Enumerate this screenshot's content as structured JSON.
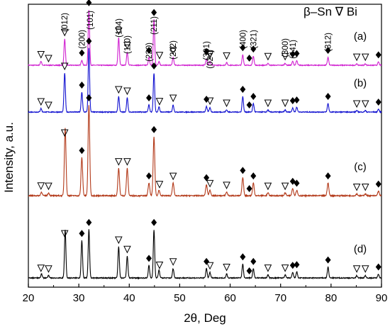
{
  "chart_data": {
    "type": "line",
    "xlabel": "2θ, Deg",
    "ylabel": "Intensity, a.u.",
    "xlim": [
      20,
      90
    ],
    "x_ticks": [
      20,
      30,
      40,
      50,
      60,
      70,
      80,
      90
    ],
    "legend": {
      "placement": "top-right",
      "items": [
        {
          "marker": "◆",
          "label": "β–Sn"
        },
        {
          "marker": "∇",
          "label": "Bi"
        }
      ],
      "text": "β–Sn ∇ Bi"
    },
    "series": [
      {
        "name": "(a)",
        "color": "#d020d0",
        "peaks": [
          {
            "x": 22.5,
            "h": 0.06
          },
          {
            "x": 27.2,
            "h": 0.4
          },
          {
            "x": 30.6,
            "h": 0.08
          },
          {
            "x": 32.0,
            "h": 0.85
          },
          {
            "x": 37.9,
            "h": 0.42
          },
          {
            "x": 39.6,
            "h": 0.2
          },
          {
            "x": 43.9,
            "h": 0.12
          },
          {
            "x": 44.9,
            "h": 0.7
          },
          {
            "x": 45.9,
            "h": 0.06
          },
          {
            "x": 48.7,
            "h": 0.12
          },
          {
            "x": 55.3,
            "h": 0.1
          },
          {
            "x": 56.0,
            "h": 0.06
          },
          {
            "x": 59.3,
            "h": 0.04
          },
          {
            "x": 62.5,
            "h": 0.16
          },
          {
            "x": 64.6,
            "h": 0.14
          },
          {
            "x": 67.5,
            "h": 0.03
          },
          {
            "x": 70.9,
            "h": 0.03
          },
          {
            "x": 72.4,
            "h": 0.06
          },
          {
            "x": 73.2,
            "h": 0.07
          },
          {
            "x": 79.4,
            "h": 0.12
          },
          {
            "x": 85.1,
            "h": 0.02
          },
          {
            "x": 86.8,
            "h": 0.02
          },
          {
            "x": 89.4,
            "h": 0.05
          }
        ]
      },
      {
        "name": "(b)",
        "color": "#1010d0",
        "peaks": [
          {
            "x": 22.5,
            "h": 0.05
          },
          {
            "x": 27.2,
            "h": 0.55
          },
          {
            "x": 30.6,
            "h": 0.28
          },
          {
            "x": 32.0,
            "h": 0.9
          },
          {
            "x": 37.9,
            "h": 0.22
          },
          {
            "x": 39.6,
            "h": 0.2
          },
          {
            "x": 43.9,
            "h": 0.1
          },
          {
            "x": 44.9,
            "h": 0.55
          },
          {
            "x": 45.9,
            "h": 0.07
          },
          {
            "x": 48.7,
            "h": 0.1
          },
          {
            "x": 55.3,
            "h": 0.08
          },
          {
            "x": 56.0,
            "h": 0.06
          },
          {
            "x": 59.3,
            "h": 0.03
          },
          {
            "x": 62.5,
            "h": 0.22
          },
          {
            "x": 64.6,
            "h": 0.12
          },
          {
            "x": 67.5,
            "h": 0.03
          },
          {
            "x": 70.9,
            "h": 0.03
          },
          {
            "x": 72.4,
            "h": 0.06
          },
          {
            "x": 73.2,
            "h": 0.07
          },
          {
            "x": 79.4,
            "h": 0.12
          },
          {
            "x": 85.1,
            "h": 0.02
          },
          {
            "x": 86.8,
            "h": 0.02
          },
          {
            "x": 89.4,
            "h": 0.04
          }
        ]
      },
      {
        "name": "(c)",
        "color": "#b33a1a",
        "peaks": [
          {
            "x": 22.6,
            "h": 0.04
          },
          {
            "x": 24.0,
            "h": 0.03
          },
          {
            "x": 27.3,
            "h": 0.75
          },
          {
            "x": 30.6,
            "h": 0.42
          },
          {
            "x": 32.0,
            "h": 1.0
          },
          {
            "x": 37.9,
            "h": 0.3
          },
          {
            "x": 39.6,
            "h": 0.3
          },
          {
            "x": 43.9,
            "h": 0.14
          },
          {
            "x": 44.9,
            "h": 0.65
          },
          {
            "x": 45.9,
            "h": 0.06
          },
          {
            "x": 48.7,
            "h": 0.14
          },
          {
            "x": 55.3,
            "h": 0.12
          },
          {
            "x": 56.0,
            "h": 0.06
          },
          {
            "x": 59.3,
            "h": 0.04
          },
          {
            "x": 62.5,
            "h": 0.2
          },
          {
            "x": 64.6,
            "h": 0.14
          },
          {
            "x": 67.5,
            "h": 0.03
          },
          {
            "x": 70.9,
            "h": 0.03
          },
          {
            "x": 72.4,
            "h": 0.08
          },
          {
            "x": 73.2,
            "h": 0.06
          },
          {
            "x": 79.4,
            "h": 0.14
          },
          {
            "x": 85.1,
            "h": 0.02
          },
          {
            "x": 86.8,
            "h": 0.02
          },
          {
            "x": 89.4,
            "h": 0.05
          }
        ]
      },
      {
        "name": "(d)",
        "color": "#000000",
        "peaks": [
          {
            "x": 22.6,
            "h": 0.05
          },
          {
            "x": 24.0,
            "h": 0.03
          },
          {
            "x": 27.3,
            "h": 0.62
          },
          {
            "x": 30.6,
            "h": 0.48
          },
          {
            "x": 32.0,
            "h": 0.62
          },
          {
            "x": 37.9,
            "h": 0.4
          },
          {
            "x": 39.6,
            "h": 0.28
          },
          {
            "x": 43.9,
            "h": 0.16
          },
          {
            "x": 44.9,
            "h": 0.62
          },
          {
            "x": 45.9,
            "h": 0.1
          },
          {
            "x": 48.7,
            "h": 0.12
          },
          {
            "x": 55.3,
            "h": 0.12
          },
          {
            "x": 56.0,
            "h": 0.07
          },
          {
            "x": 59.3,
            "h": 0.05
          },
          {
            "x": 62.5,
            "h": 0.18
          },
          {
            "x": 64.6,
            "h": 0.12
          },
          {
            "x": 67.5,
            "h": 0.04
          },
          {
            "x": 70.9,
            "h": 0.04
          },
          {
            "x": 72.4,
            "h": 0.07
          },
          {
            "x": 73.2,
            "h": 0.08
          },
          {
            "x": 79.4,
            "h": 0.14
          },
          {
            "x": 85.1,
            "h": 0.03
          },
          {
            "x": 86.8,
            "h": 0.03
          },
          {
            "x": 89.4,
            "h": 0.05
          }
        ]
      }
    ],
    "peak_markers": [
      {
        "x": 22.5,
        "phase": "Bi"
      },
      {
        "x": 24.0,
        "phase": "Bi"
      },
      {
        "x": 27.2,
        "phase": "Bi"
      },
      {
        "x": 30.6,
        "phase": "β-Sn"
      },
      {
        "x": 32.0,
        "phase": "β-Sn"
      },
      {
        "x": 37.9,
        "phase": "Bi"
      },
      {
        "x": 39.6,
        "phase": "Bi"
      },
      {
        "x": 43.9,
        "phase": "β-Sn"
      },
      {
        "x": 44.9,
        "phase": "β-Sn"
      },
      {
        "x": 46.0,
        "phase": "Bi"
      },
      {
        "x": 48.7,
        "phase": "Bi"
      },
      {
        "x": 55.3,
        "phase": "β-Sn"
      },
      {
        "x": 56.0,
        "phase": "Bi"
      },
      {
        "x": 59.3,
        "phase": "Bi"
      },
      {
        "x": 62.5,
        "phase": "β-Sn"
      },
      {
        "x": 63.8,
        "phase": "β-Sn"
      },
      {
        "x": 64.6,
        "phase": "β-Sn"
      },
      {
        "x": 67.5,
        "phase": "Bi"
      },
      {
        "x": 70.9,
        "phase": "Bi"
      },
      {
        "x": 72.4,
        "phase": "β-Sn"
      },
      {
        "x": 73.2,
        "phase": "β-Sn"
      },
      {
        "x": 79.4,
        "phase": "β-Sn"
      },
      {
        "x": 85.1,
        "phase": "Bi"
      },
      {
        "x": 86.8,
        "phase": "Bi"
      },
      {
        "x": 89.4,
        "phase": "β-Sn"
      }
    ],
    "annotations": [
      {
        "text": "(012)",
        "x": 27.2
      },
      {
        "text": "(101)",
        "x": 32.2
      },
      {
        "text": "(200)",
        "x": 30.6
      },
      {
        "text": "(104)",
        "x": 37.9
      },
      {
        "text": "(110)",
        "x": 39.6
      },
      {
        "text": "(220)",
        "x": 43.9
      },
      {
        "text": "(211)",
        "x": 44.9
      },
      {
        "text": "(202)",
        "x": 48.7
      },
      {
        "text": "(301)",
        "x": 55.3
      },
      {
        "text": "(024)",
        "x": 56.0
      },
      {
        "text": "(400)",
        "x": 62.5
      },
      {
        "text": "(321)",
        "x": 64.6
      },
      {
        "text": "(300)",
        "x": 70.9
      },
      {
        "text": "(441)",
        "x": 72.4
      },
      {
        "text": "(312)",
        "x": 79.4
      }
    ]
  }
}
